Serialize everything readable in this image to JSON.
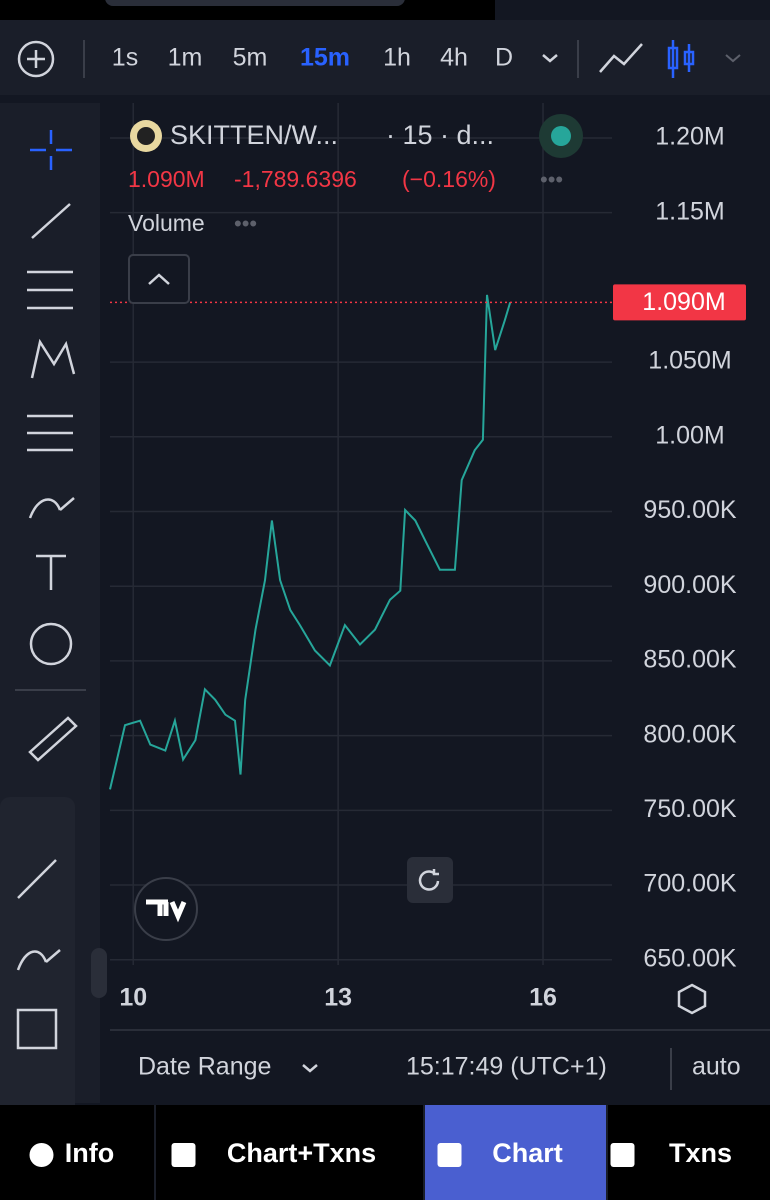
{
  "toolbar": {
    "timeframes": [
      "1s",
      "1m",
      "5m",
      "15m",
      "1h",
      "4h",
      "D"
    ],
    "active_timeframe": 3
  },
  "legend": {
    "symbol": "SKITTEN/W...",
    "interval": "· 15 · d...",
    "price": "1.090M",
    "change": "-1,789.6396",
    "change_pct": "(−0.16%)",
    "volume": "Volume"
  },
  "chart_data": {
    "type": "line",
    "color": "#26a69a",
    "x": [
      9.66,
      9.88,
      10.1,
      10.25,
      10.47,
      10.61,
      10.73,
      10.91,
      11.05,
      11.2,
      11.35,
      11.49,
      11.57,
      11.64,
      11.79,
      11.93,
      12.03,
      12.15,
      12.3,
      12.44,
      12.66,
      12.88,
      13.1,
      13.32,
      13.54,
      13.76,
      13.91,
      13.98,
      14.13,
      14.27,
      14.49,
      14.71,
      14.81,
      15.0,
      15.12,
      15.18,
      15.3,
      15.44,
      15.52
    ],
    "values": [
      764000,
      807000,
      810000,
      794000,
      790000,
      810000,
      784000,
      797000,
      831000,
      824000,
      814000,
      810000,
      774000,
      824000,
      871000,
      904000,
      944000,
      904000,
      884000,
      874000,
      857000,
      847000,
      874000,
      861000,
      871000,
      891000,
      897000,
      951000,
      944000,
      931000,
      911000,
      911000,
      971000,
      991000,
      998000,
      1095000,
      1058000,
      1078000,
      1090000
    ],
    "xlim": [
      9.66,
      17.01
    ],
    "xticks": [
      10,
      13,
      16
    ],
    "ylim": [
      646500,
      1223400
    ],
    "yticks": [
      {
        "value": 650000,
        "label": "650.00K"
      },
      {
        "value": 700000,
        "label": "700.00K"
      },
      {
        "value": 750000,
        "label": "750.00K"
      },
      {
        "value": 800000,
        "label": "800.00K"
      },
      {
        "value": 850000,
        "label": "850.00K"
      },
      {
        "value": 900000,
        "label": "900.00K"
      },
      {
        "value": 950000,
        "label": "950.00K"
      },
      {
        "value": 1000000,
        "label": "1.00M"
      },
      {
        "value": 1050000,
        "label": "1.050M"
      },
      {
        "value": 1150000,
        "label": "1.15M"
      },
      {
        "value": 1200000,
        "label": "1.20M"
      }
    ],
    "grid": true,
    "last_price": {
      "value": 1090000,
      "label": "1.090M",
      "color": "#f23645"
    }
  },
  "footer": {
    "date_range": "Date Range",
    "time": "15:17:49 (UTC+1)",
    "scale": "auto"
  },
  "tabs": [
    "Info",
    "Chart+Txns",
    "Chart",
    "Txns"
  ],
  "active_tab": 2
}
